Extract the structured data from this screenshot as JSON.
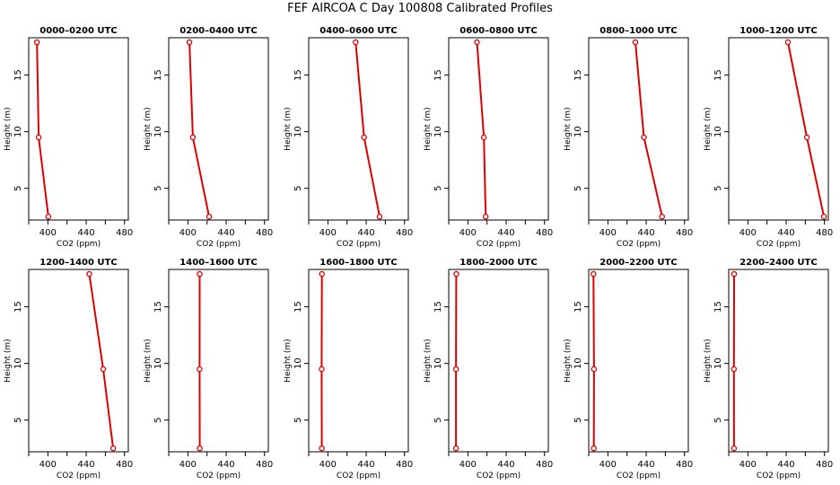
{
  "title": "FEF AIRCOA C  Day 100808  Calibrated Profiles",
  "colors": {
    "series": "#dd0000",
    "axis": "#000000",
    "background": "#ffffff"
  },
  "chart_data": [
    {
      "type": "line",
      "title": "0000–0200 UTC",
      "xlabel": "CO2 (ppm)",
      "ylabel": "Height (m)",
      "x_ticks": [
        400,
        440,
        480
      ],
      "y_ticks": [
        5,
        10,
        15
      ],
      "xlim": [
        380,
        484
      ],
      "ylim": [
        2.2,
        18.3
      ],
      "series": [
        {
          "values": [
            {
              "x": 388.6,
              "y": 17.9
            },
            {
              "x": 390.4,
              "y": 9.5
            },
            {
              "x": 400.5,
              "y": 2.5
            }
          ]
        }
      ]
    },
    {
      "type": "line",
      "title": "0200–0400 UTC",
      "xlabel": "CO2 (ppm)",
      "ylabel": "Height (m)",
      "x_ticks": [
        400,
        440,
        480
      ],
      "y_ticks": [
        5,
        10,
        15
      ],
      "xlim": [
        380,
        484
      ],
      "ylim": [
        2.2,
        18.3
      ],
      "series": [
        {
          "values": [
            {
              "x": 401.6,
              "y": 17.9
            },
            {
              "x": 405.2,
              "y": 9.5
            },
            {
              "x": 422.2,
              "y": 2.5
            }
          ]
        }
      ]
    },
    {
      "type": "line",
      "title": "0400–0600 UTC",
      "xlabel": "CO2 (ppm)",
      "ylabel": "Height (m)",
      "x_ticks": [
        400,
        440,
        480
      ],
      "y_ticks": [
        5,
        10,
        15
      ],
      "xlim": [
        380,
        484
      ],
      "ylim": [
        2.2,
        18.3
      ],
      "series": [
        {
          "values": [
            {
              "x": 429.0,
              "y": 17.9
            },
            {
              "x": 437.8,
              "y": 9.5
            },
            {
              "x": 454.0,
              "y": 2.5
            }
          ]
        }
      ]
    },
    {
      "type": "line",
      "title": "0600–0800 UTC",
      "xlabel": "CO2 (ppm)",
      "ylabel": "Height (m)",
      "x_ticks": [
        400,
        440,
        480
      ],
      "y_ticks": [
        5,
        10,
        15
      ],
      "xlim": [
        380,
        484
      ],
      "ylim": [
        2.2,
        18.3
      ],
      "series": [
        {
          "values": [
            {
              "x": 409.5,
              "y": 17.9
            },
            {
              "x": 416.7,
              "y": 9.5
            },
            {
              "x": 418.6,
              "y": 2.5
            }
          ]
        }
      ]
    },
    {
      "type": "line",
      "title": "0800–1000 UTC",
      "xlabel": "CO2 (ppm)",
      "ylabel": "Height (m)",
      "x_ticks": [
        400,
        440,
        480
      ],
      "y_ticks": [
        5,
        10,
        15
      ],
      "xlim": [
        380,
        484
      ],
      "ylim": [
        2.2,
        18.3
      ],
      "series": [
        {
          "values": [
            {
              "x": 428.7,
              "y": 17.9
            },
            {
              "x": 437.6,
              "y": 9.5
            },
            {
              "x": 456.6,
              "y": 2.5
            }
          ]
        }
      ]
    },
    {
      "type": "line",
      "title": "1000–1200 UTC",
      "xlabel": "CO2 (ppm)",
      "ylabel": "Height (m)",
      "x_ticks": [
        400,
        440,
        480
      ],
      "y_ticks": [
        5,
        10,
        15
      ],
      "xlim": [
        380,
        484
      ],
      "ylim": [
        2.2,
        18.3
      ],
      "series": [
        {
          "values": [
            {
              "x": 441.8,
              "y": 17.9
            },
            {
              "x": 461.6,
              "y": 9.5
            },
            {
              "x": 479.4,
              "y": 2.5
            }
          ]
        }
      ]
    },
    {
      "type": "line",
      "title": "1200–1400 UTC",
      "xlabel": "CO2 (ppm)",
      "ylabel": "Height (m)",
      "x_ticks": [
        400,
        440,
        480
      ],
      "y_ticks": [
        5,
        10,
        15
      ],
      "xlim": [
        380,
        484
      ],
      "ylim": [
        2.2,
        18.3
      ],
      "series": [
        {
          "values": [
            {
              "x": 443.2,
              "y": 17.9
            },
            {
              "x": 457.8,
              "y": 9.5
            },
            {
              "x": 468.2,
              "y": 2.5
            }
          ]
        }
      ]
    },
    {
      "type": "line",
      "title": "1400–1600 UTC",
      "xlabel": "CO2 (ppm)",
      "ylabel": "Height (m)",
      "x_ticks": [
        400,
        440,
        480
      ],
      "y_ticks": [
        5,
        10,
        15
      ],
      "xlim": [
        380,
        484
      ],
      "ylim": [
        2.2,
        18.3
      ],
      "series": [
        {
          "values": [
            {
              "x": 412.3,
              "y": 17.9
            },
            {
              "x": 412.2,
              "y": 9.5
            },
            {
              "x": 412.4,
              "y": 2.5
            }
          ]
        }
      ]
    },
    {
      "type": "line",
      "title": "1600–1800 UTC",
      "xlabel": "CO2 (ppm)",
      "ylabel": "Height (m)",
      "x_ticks": [
        400,
        440,
        480
      ],
      "y_ticks": [
        5,
        10,
        15
      ],
      "xlim": [
        380,
        484
      ],
      "ylim": [
        2.2,
        18.3
      ],
      "series": [
        {
          "values": [
            {
              "x": 393.8,
              "y": 17.9
            },
            {
              "x": 393.5,
              "y": 9.5
            },
            {
              "x": 393.7,
              "y": 2.5
            }
          ]
        }
      ]
    },
    {
      "type": "line",
      "title": "1800–2000 UTC",
      "xlabel": "CO2 (ppm)",
      "ylabel": "Height (m)",
      "x_ticks": [
        400,
        440,
        480
      ],
      "y_ticks": [
        5,
        10,
        15
      ],
      "xlim": [
        380,
        484
      ],
      "ylim": [
        2.2,
        18.3
      ],
      "series": [
        {
          "values": [
            {
              "x": 387.9,
              "y": 17.9
            },
            {
              "x": 387.6,
              "y": 9.5
            },
            {
              "x": 387.6,
              "y": 2.5
            }
          ]
        }
      ]
    },
    {
      "type": "line",
      "title": "2000–2200 UTC",
      "xlabel": "CO2 (ppm)",
      "ylabel": "Height (m)",
      "x_ticks": [
        400,
        440,
        480
      ],
      "y_ticks": [
        5,
        10,
        15
      ],
      "xlim": [
        380,
        484
      ],
      "ylim": [
        2.2,
        18.3
      ],
      "series": [
        {
          "values": [
            {
              "x": 385.0,
              "y": 17.9
            },
            {
              "x": 385.5,
              "y": 9.5
            },
            {
              "x": 385.3,
              "y": 2.5
            }
          ]
        }
      ]
    },
    {
      "type": "line",
      "title": "2200–2400 UTC",
      "xlabel": "CO2 (ppm)",
      "ylabel": "Height (m)",
      "x_ticks": [
        400,
        440,
        480
      ],
      "y_ticks": [
        5,
        10,
        15
      ],
      "xlim": [
        380,
        484
      ],
      "ylim": [
        2.2,
        18.3
      ],
      "series": [
        {
          "values": [
            {
              "x": 385.6,
              "y": 17.9
            },
            {
              "x": 385.4,
              "y": 9.5
            },
            {
              "x": 385.5,
              "y": 2.5
            }
          ]
        }
      ]
    }
  ]
}
